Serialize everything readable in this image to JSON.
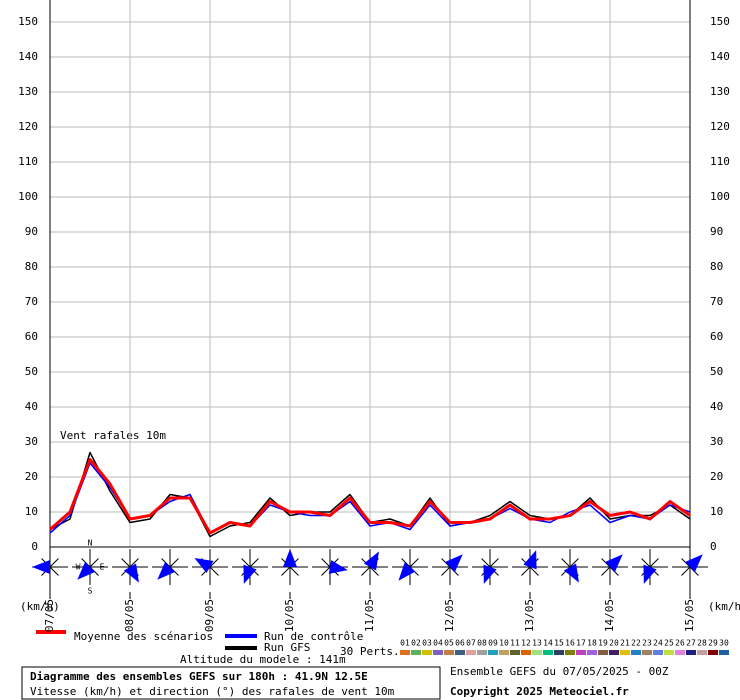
{
  "chart_data": {
    "type": "line",
    "title": "Vent rafales 10m",
    "y_unit_left": "(km/h)",
    "y_unit_right": "(km/h)",
    "categories": [
      "07/05",
      null,
      null,
      null,
      "08/05",
      null,
      null,
      null,
      "09/05",
      null,
      null,
      null,
      "10/05",
      null,
      null,
      null,
      "11/05",
      null,
      null,
      null,
      "12/05",
      null,
      null,
      null,
      "13/05",
      null,
      null,
      null,
      "14/05",
      null,
      null,
      null,
      "15/05"
    ],
    "ylim": [
      0,
      150
    ],
    "yticks": [
      0,
      10,
      20,
      30,
      40,
      50,
      60,
      70,
      80,
      90,
      100,
      110,
      120,
      130,
      140,
      150
    ],
    "grid": true,
    "series": [
      {
        "name": "Run GFS",
        "color": "#000000",
        "values": [
          5,
          8,
          27,
          16,
          7,
          8,
          15,
          14,
          3,
          6,
          7,
          14,
          9,
          10,
          10,
          15,
          7,
          8,
          6,
          14,
          6,
          7,
          9,
          13,
          9,
          8,
          9,
          14,
          8,
          9,
          9,
          12,
          8
        ]
      },
      {
        "name": "Run de contrôle",
        "color": "#0000ff",
        "values": [
          4,
          9,
          24,
          17,
          8,
          9,
          13,
          15,
          4,
          7,
          6,
          12,
          10,
          9,
          9,
          13,
          6,
          7,
          5,
          12,
          6,
          7,
          8,
          11,
          8,
          7,
          10,
          12,
          7,
          9,
          8,
          12,
          10
        ]
      },
      {
        "name": "Moyenne des scénarios",
        "color": "#ff0000",
        "values": [
          5,
          10,
          25,
          18,
          8,
          9,
          14,
          14,
          4,
          7,
          6,
          13,
          10,
          10,
          9,
          14,
          7,
          7,
          6,
          13,
          7,
          7,
          8,
          12,
          8,
          8,
          9,
          13,
          9,
          10,
          8,
          13,
          9
        ]
      }
    ],
    "wind_directions": [
      270,
      225,
      150,
      225,
      300,
      200,
      0,
      100,
      30,
      220,
      45,
      200,
      20,
      150,
      45,
      200,
      45
    ],
    "compass": [
      "N",
      "E",
      "S",
      "W"
    ],
    "members_label": "30 Perts.",
    "members": [
      {
        "name": "01",
        "color": "#e07020"
      },
      {
        "name": "02",
        "color": "#60b060"
      },
      {
        "name": "03",
        "color": "#d0c000"
      },
      {
        "name": "04",
        "color": "#8060c0"
      },
      {
        "name": "05",
        "color": "#c08040"
      },
      {
        "name": "06",
        "color": "#406080"
      },
      {
        "name": "07",
        "color": "#e0a0a0"
      },
      {
        "name": "08",
        "color": "#a0a0a0"
      },
      {
        "name": "09",
        "color": "#20a0c0"
      },
      {
        "name": "10",
        "color": "#c0a060"
      },
      {
        "name": "11",
        "color": "#606030"
      },
      {
        "name": "12",
        "color": "#e06000"
      },
      {
        "name": "13",
        "color": "#a0e080"
      },
      {
        "name": "14",
        "color": "#00c080"
      },
      {
        "name": "15",
        "color": "#304060"
      },
      {
        "name": "16",
        "color": "#808000"
      },
      {
        "name": "17",
        "color": "#c040c0"
      },
      {
        "name": "18",
        "color": "#a060e0"
      },
      {
        "name": "19",
        "color": "#806040"
      },
      {
        "name": "20",
        "color": "#402060"
      },
      {
        "name": "21",
        "color": "#e0c000"
      },
      {
        "name": "22",
        "color": "#2080c0"
      },
      {
        "name": "23",
        "color": "#a08060"
      },
      {
        "name": "24",
        "color": "#6080e0"
      },
      {
        "name": "25",
        "color": "#c0e040"
      },
      {
        "name": "26",
        "color": "#e080e0"
      },
      {
        "name": "27",
        "color": "#202080"
      },
      {
        "name": "28",
        "color": "#c0a0a0"
      },
      {
        "name": "29",
        "color": "#800000"
      },
      {
        "name": "30",
        "color": "#2060a0"
      }
    ],
    "altitude": "Altitude du modele : 141m",
    "box_title": "Diagramme des ensembles GEFS sur 180h : 41.9N 12.5E",
    "box_subtitle": "Vitesse (km/h) et direction (°) des rafales de vent 10m",
    "run_info": "Ensemble GEFS du 07/05/2025 - 00Z",
    "copyright": "Copyright 2025 Meteociel.fr"
  }
}
